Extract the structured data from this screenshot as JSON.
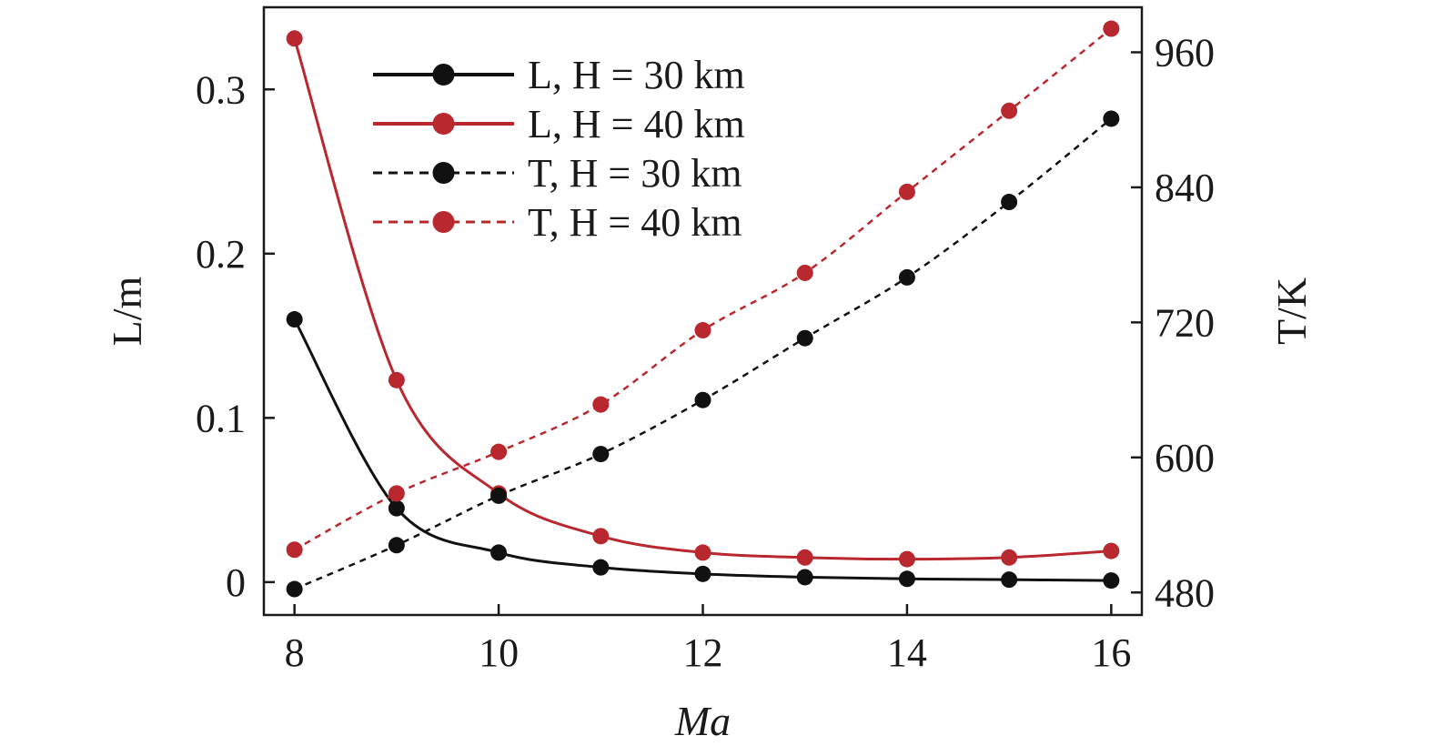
{
  "chart_data": {
    "type": "line",
    "xlabel": "Ma",
    "ylabel_left": "L/m",
    "ylabel_right": "T/K",
    "xlim": [
      7.7,
      16.3
    ],
    "ylim_left": [
      -0.02,
      0.35
    ],
    "ylim_right": [
      460,
      1000
    ],
    "x_ticks": [
      8,
      10,
      12,
      14,
      16
    ],
    "y_ticks_left": [
      {
        "value": 0,
        "label": "0"
      },
      {
        "value": 0.1,
        "label": "0.1"
      },
      {
        "value": 0.2,
        "label": "0.2"
      },
      {
        "value": 0.3,
        "label": "0.3"
      }
    ],
    "y_ticks_right": [
      {
        "value": 480,
        "label": "480"
      },
      {
        "value": 600,
        "label": "600"
      },
      {
        "value": 720,
        "label": "720"
      },
      {
        "value": 840,
        "label": "840"
      },
      {
        "value": 960,
        "label": "960"
      }
    ],
    "grid": false,
    "legend_position": "top-left",
    "x": [
      8,
      9,
      10,
      11,
      12,
      13,
      14,
      15,
      16
    ],
    "series": [
      {
        "name": "L, H = 30 km",
        "axis": "left",
        "color": "#111111",
        "dash": false,
        "values": [
          0.16,
          0.045,
          0.018,
          0.009,
          0.005,
          0.003,
          0.002,
          0.0015,
          0.001
        ]
      },
      {
        "name": "L, H = 40 km",
        "axis": "left",
        "color": "#b8282e",
        "dash": false,
        "values": [
          0.331,
          0.123,
          0.054,
          0.028,
          0.018,
          0.015,
          0.014,
          0.015,
          0.019
        ]
      },
      {
        "name": "T, H = 30 km",
        "axis": "right",
        "color": "#111111",
        "dash": true,
        "values": [
          483,
          522,
          566,
          603,
          651,
          706,
          760,
          827,
          901
        ]
      },
      {
        "name": "T, H = 40 km",
        "axis": "right",
        "color": "#b8282e",
        "dash": true,
        "values": [
          518,
          568,
          605,
          647,
          713,
          764,
          836,
          908,
          981
        ]
      }
    ]
  }
}
